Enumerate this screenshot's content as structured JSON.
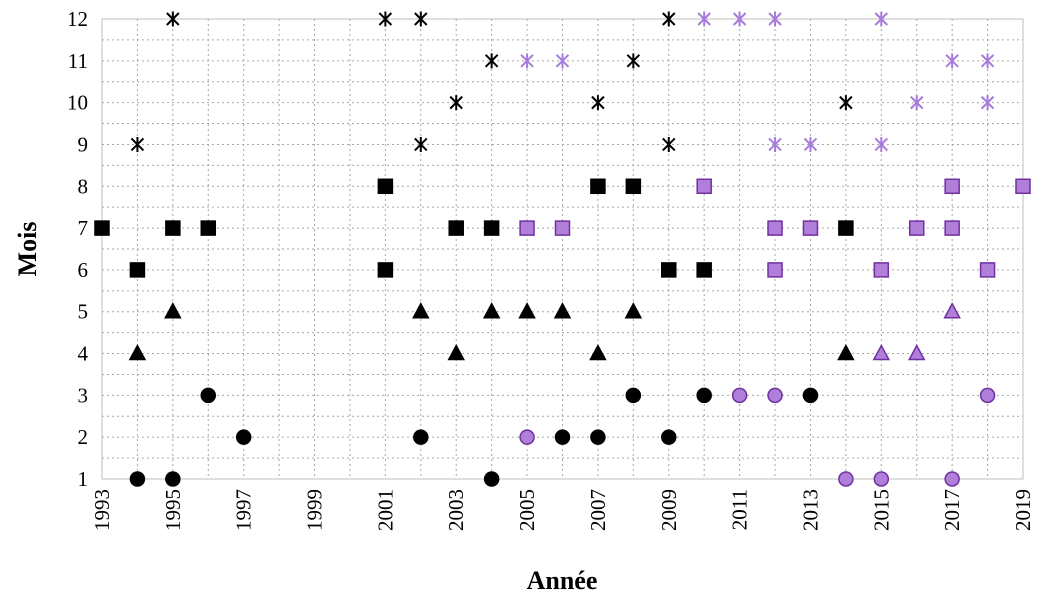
{
  "chart_data": {
    "type": "scatter",
    "title": "",
    "xlabel": "Année",
    "ylabel": "Mois",
    "xlim": [
      1993,
      2019
    ],
    "ylim": [
      1,
      12
    ],
    "x_ticks": [
      "1993",
      "1995",
      "1997",
      "1999",
      "2001",
      "2003",
      "2005",
      "2007",
      "2009",
      "2011",
      "2013",
      "2015",
      "2017",
      "2019"
    ],
    "y_ticks": [
      "1",
      "2",
      "3",
      "4",
      "5",
      "6",
      "7",
      "8",
      "9",
      "10",
      "11",
      "12"
    ],
    "grid": true,
    "colors": {
      "black": "#000000",
      "purple_fill": "#b07fda",
      "purple_edge": "#7030a0",
      "purple_star": "#a77bdc"
    },
    "series": [
      {
        "marker": "circle",
        "color": "black",
        "points": [
          [
            1994,
            1
          ],
          [
            1995,
            1
          ],
          [
            1996,
            3
          ],
          [
            1997,
            2
          ],
          [
            2002,
            2
          ],
          [
            2004,
            1
          ],
          [
            2006,
            2
          ],
          [
            2007,
            2
          ],
          [
            2008,
            3
          ],
          [
            2009,
            2
          ],
          [
            2010,
            3
          ],
          [
            2013,
            3
          ]
        ]
      },
      {
        "marker": "circle",
        "color": "purple",
        "points": [
          [
            2005,
            2
          ],
          [
            2011,
            3
          ],
          [
            2012,
            3
          ],
          [
            2014,
            1
          ],
          [
            2015,
            1
          ],
          [
            2017,
            1
          ],
          [
            2018,
            3
          ]
        ]
      },
      {
        "marker": "triangle",
        "color": "black",
        "points": [
          [
            1994,
            4
          ],
          [
            1995,
            5
          ],
          [
            2002,
            5
          ],
          [
            2003,
            4
          ],
          [
            2004,
            5
          ],
          [
            2005,
            5
          ],
          [
            2006,
            5
          ],
          [
            2007,
            4
          ],
          [
            2008,
            5
          ],
          [
            2014,
            4
          ]
        ]
      },
      {
        "marker": "triangle",
        "color": "purple",
        "points": [
          [
            2015,
            4
          ],
          [
            2016,
            4
          ],
          [
            2017,
            5
          ]
        ]
      },
      {
        "marker": "square",
        "color": "black",
        "points": [
          [
            1993,
            7
          ],
          [
            1994,
            6
          ],
          [
            1995,
            7
          ],
          [
            1996,
            7
          ],
          [
            2001,
            8
          ],
          [
            2001,
            6
          ],
          [
            2003,
            7
          ],
          [
            2004,
            7
          ],
          [
            2007,
            8
          ],
          [
            2008,
            8
          ],
          [
            2009,
            6
          ],
          [
            2010,
            6
          ],
          [
            2014,
            7
          ]
        ]
      },
      {
        "marker": "square",
        "color": "purple",
        "points": [
          [
            2005,
            7
          ],
          [
            2006,
            7
          ],
          [
            2010,
            8
          ],
          [
            2012,
            7
          ],
          [
            2012,
            6
          ],
          [
            2013,
            7
          ],
          [
            2015,
            6
          ],
          [
            2016,
            7
          ],
          [
            2017,
            8
          ],
          [
            2017,
            7
          ],
          [
            2018,
            6
          ],
          [
            2019,
            8
          ]
        ]
      },
      {
        "marker": "star",
        "color": "black",
        "points": [
          [
            1994,
            9
          ],
          [
            1995,
            12
          ],
          [
            2001,
            12
          ],
          [
            2002,
            12
          ],
          [
            2002,
            9
          ],
          [
            2003,
            10
          ],
          [
            2004,
            11
          ],
          [
            2007,
            10
          ],
          [
            2008,
            11
          ],
          [
            2009,
            12
          ],
          [
            2009,
            9
          ],
          [
            2014,
            10
          ]
        ]
      },
      {
        "marker": "star",
        "color": "purple",
        "points": [
          [
            2005,
            11
          ],
          [
            2006,
            11
          ],
          [
            2010,
            12
          ],
          [
            2011,
            12
          ],
          [
            2012,
            12
          ],
          [
            2012,
            9
          ],
          [
            2013,
            9
          ],
          [
            2015,
            12
          ],
          [
            2015,
            9
          ],
          [
            2016,
            10
          ],
          [
            2017,
            11
          ],
          [
            2018,
            11
          ],
          [
            2018,
            10
          ]
        ]
      }
    ]
  }
}
